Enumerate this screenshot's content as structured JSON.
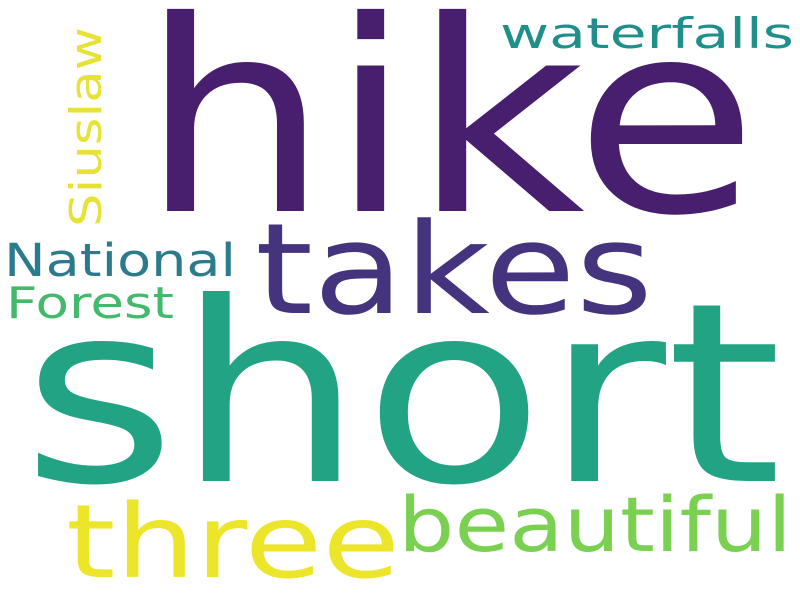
{
  "word_cloud": {
    "words": [
      {
        "key": "hike",
        "text": "hike",
        "color": "#471f6e"
      },
      {
        "key": "takes",
        "text": "takes",
        "color": "#46337e"
      },
      {
        "key": "short",
        "text": "short",
        "color": "#22a484"
      },
      {
        "key": "three",
        "text": "three",
        "color": "#ece52a"
      },
      {
        "key": "beautiful",
        "text": "beautiful",
        "color": "#7ad151"
      },
      {
        "key": "waterfalls",
        "text": "waterfalls",
        "color": "#1f8f8b"
      },
      {
        "key": "siuslaw",
        "text": "Siuslaw",
        "color": "#e7e236"
      },
      {
        "key": "national",
        "text": "National",
        "color": "#2c7b8d"
      },
      {
        "key": "forest",
        "text": "Forest",
        "color": "#43b96b"
      }
    ]
  }
}
